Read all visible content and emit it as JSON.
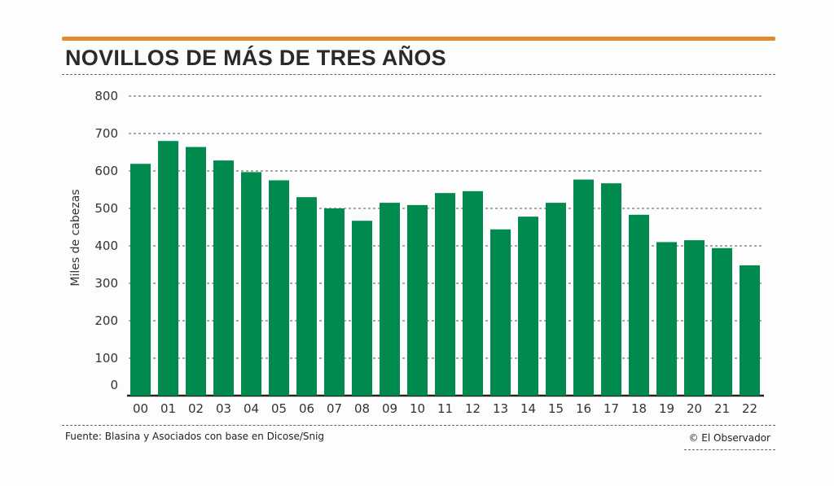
{
  "title": "NOVILLOS DE MÁS DE TRES AÑOS",
  "source": "Fuente: Blasina y Asociados con base en Dicose/Snig",
  "credit": "© El Observador",
  "colors": {
    "bar": "#008a4d",
    "accent": "#e0892e",
    "grid": "#777777"
  },
  "chart_data": {
    "type": "bar",
    "title": "NOVILLOS DE MÁS DE TRES AÑOS",
    "xlabel": "",
    "ylabel": "Miles de cabezas",
    "ylim": [
      0,
      800
    ],
    "yticks": [
      0,
      100,
      200,
      300,
      400,
      500,
      600,
      700,
      800
    ],
    "grid": true,
    "categories": [
      "00",
      "01",
      "02",
      "03",
      "04",
      "05",
      "06",
      "07",
      "08",
      "09",
      "10",
      "11",
      "12",
      "13",
      "14",
      "15",
      "16",
      "17",
      "18",
      "19",
      "20",
      "21",
      "22"
    ],
    "values": [
      619,
      680,
      664,
      628,
      597,
      575,
      530,
      500,
      467,
      515,
      509,
      541,
      546,
      444,
      478,
      515,
      577,
      567,
      483,
      410,
      415,
      394,
      348
    ]
  }
}
